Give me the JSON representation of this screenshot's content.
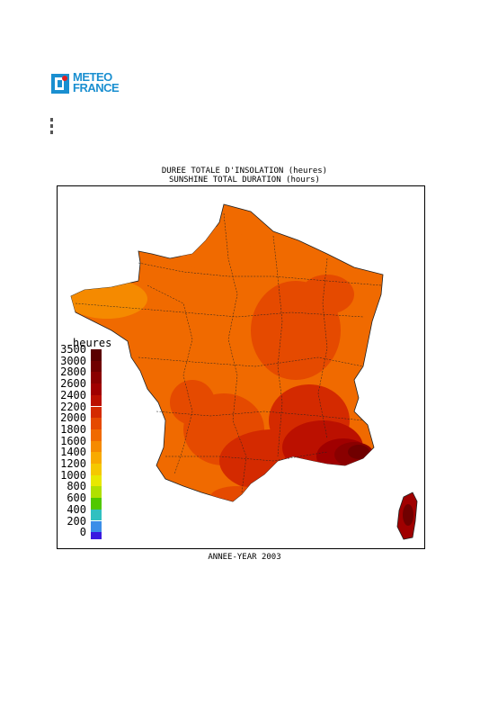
{
  "logo": {
    "line1": "METEO",
    "line2": "FRANCE",
    "color": "#1a8fd0",
    "mark_icon": "meteo-france-logo-icon"
  },
  "title_fr": "DUREE TOTALE D'INSOLATION (heures)",
  "title_en": "SUNSHINE TOTAL DURATION (hours)",
  "legend": {
    "unit": "heures",
    "classes": [
      {
        "label": "3500",
        "color": "#5a0000"
      },
      {
        "label": "3000",
        "color": "#700000"
      },
      {
        "label": "2800",
        "color": "#8a0000"
      },
      {
        "label": "2600",
        "color": "#a00000"
      },
      {
        "label": "2400",
        "color": "#bb1000"
      },
      {
        "label": "2200",
        "color": "#d42a00"
      },
      {
        "label": "2000",
        "color": "#e54a00"
      },
      {
        "label": "1800",
        "color": "#f06a00"
      },
      {
        "label": "1600",
        "color": "#f58a00"
      },
      {
        "label": "1400",
        "color": "#f8aa00"
      },
      {
        "label": "1200",
        "color": "#f5c800"
      },
      {
        "label": "1000",
        "color": "#e8e800"
      },
      {
        "label": "800",
        "color": "#b0e000"
      },
      {
        "label": "600",
        "color": "#50c800"
      },
      {
        "label": "400",
        "color": "#30c0c0"
      },
      {
        "label": "200",
        "color": "#3a8ee8"
      },
      {
        "label": "0",
        "color": "#3a1ae0"
      }
    ]
  },
  "year_label": "ANNEE-YEAR 2003"
}
